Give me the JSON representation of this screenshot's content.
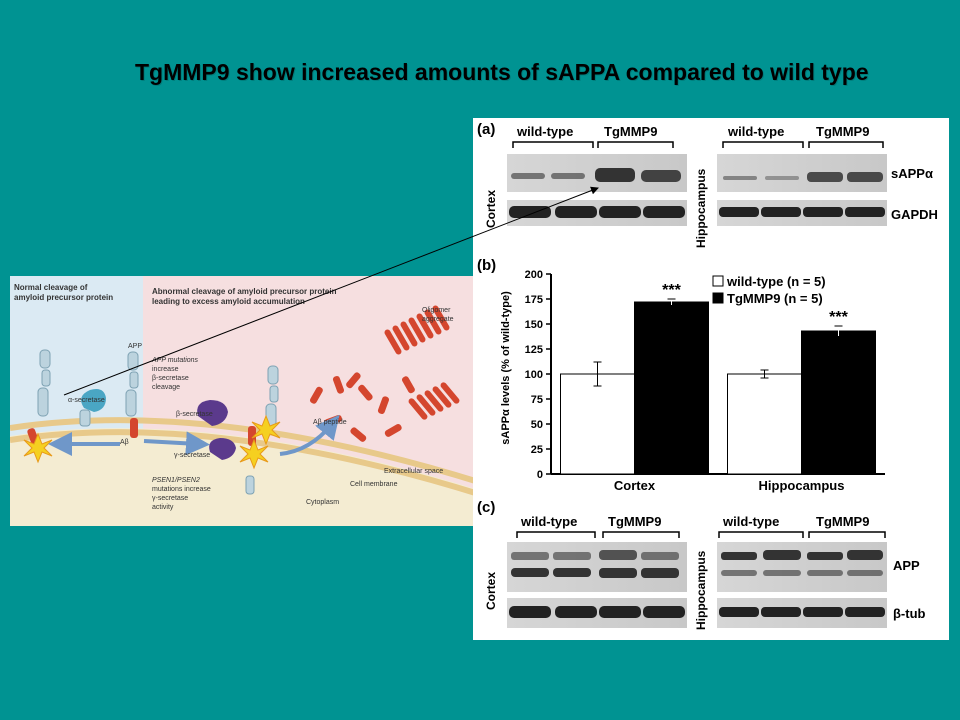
{
  "slide": {
    "title": "TgMMP9 show increased amounts of sAPPA compared to wild type",
    "background": "#009392"
  },
  "pathway": {
    "left_heading_1": "Normal cleavage of",
    "left_heading_2": "amyloid precursor protein",
    "right_heading_1": "Abnormal cleavage of amyloid precursor protein",
    "right_heading_2": "leading to excess amyloid accumulation",
    "labels": {
      "alpha_secretase": "α-secretase",
      "app": "APP",
      "abeta_small": "Aβ",
      "app_mut_1": "APP mutations",
      "app_mut_2": "increase",
      "app_mut_3": "β-secretase",
      "app_mut_4": "cleavage",
      "beta_secretase": "β-secretase",
      "gamma_secretase": "γ-secretase",
      "psen_1": "PSEN1/PSEN2",
      "psen_2": "mutations increase",
      "psen_3": "γ-secretase",
      "psen_4": "activity",
      "abeta_peptide": "Aβ peptide",
      "oligomer_1": "Oligomer",
      "oligomer_2": "aggregate",
      "extracellular": "Extracellular space",
      "membrane": "Cell membrane",
      "cytoplasm": "Cytoplasm"
    }
  },
  "figure": {
    "panel_a": "(a)",
    "panel_b": "(b)",
    "panel_c": "(c)",
    "wild_type": "wild-type",
    "tgmmp9": "TgMMP9",
    "cortex": "Cortex",
    "hippocampus": "Hippocampus",
    "sappa": "sAPPα",
    "gapdh": "GAPDH",
    "app": "APP",
    "btub": "β-tub",
    "significance": "***"
  },
  "chart_data": {
    "type": "bar",
    "categories": [
      "Cortex",
      "Hippocampus"
    ],
    "series": [
      {
        "name": "wild-type (n = 5)",
        "values": [
          100,
          100
        ],
        "errors": [
          12,
          4
        ],
        "color": "#ffffff"
      },
      {
        "name": "TgMMP9 (n = 5)",
        "values": [
          172,
          143
        ],
        "errors": [
          3,
          5
        ],
        "color": "#000000"
      }
    ],
    "ylabel": "sAPPα levels (% of wild-type)",
    "ylim": [
      0,
      200
    ],
    "yticks": [
      "0",
      "25",
      "50",
      "75",
      "100",
      "125",
      "150",
      "175",
      "200"
    ],
    "legend": [
      "wild-type (n = 5)",
      "TgMMP9 (n = 5)"
    ],
    "legend_position": "top-right",
    "annotations": [
      "***",
      "***"
    ]
  }
}
